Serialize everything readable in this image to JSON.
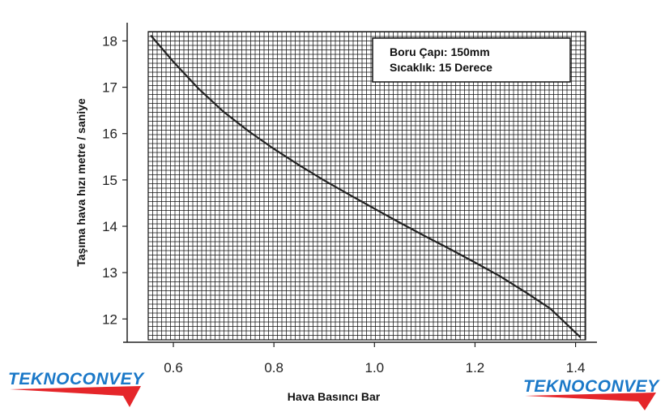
{
  "chart_data": {
    "type": "line",
    "xlabel": "Hava Basıncı Bar",
    "ylabel": "Taşıma hava hızı metre / saniye",
    "xlim": [
      0.55,
      1.42
    ],
    "ylim": [
      11.55,
      18.2
    ],
    "x_ticks": [
      "0.6",
      "0.8",
      "1.0",
      "1.2",
      "1.4"
    ],
    "x_tick_values": [
      0.6,
      0.8,
      1.0,
      1.2,
      1.4
    ],
    "y_ticks": [
      "12",
      "13",
      "14",
      "15",
      "16",
      "17",
      "18"
    ],
    "y_tick_values": [
      12,
      13,
      14,
      15,
      16,
      17,
      18
    ],
    "grid": true,
    "legend_position": "top-right",
    "legend_lines": [
      "Boru Çapı: 150mm",
      "Sıcaklık: 15 Derece"
    ],
    "series": [
      {
        "x": [
          0.555,
          0.6,
          0.65,
          0.7,
          0.75,
          0.8,
          0.85,
          0.9,
          0.95,
          1.0,
          1.05,
          1.1,
          1.15,
          1.2,
          1.25,
          1.3,
          1.35,
          1.41
        ],
        "y": [
          18.12,
          17.55,
          16.97,
          16.47,
          16.05,
          15.67,
          15.32,
          14.99,
          14.68,
          14.38,
          14.08,
          13.79,
          13.51,
          13.22,
          12.92,
          12.58,
          12.22,
          11.6
        ]
      }
    ],
    "line_color": "#222222",
    "grid_color": "#111111"
  },
  "branding": {
    "logo_text": "TEKNOCONVEY",
    "logo_color": "#1a78c8",
    "swoosh_color": "#e5262a"
  }
}
